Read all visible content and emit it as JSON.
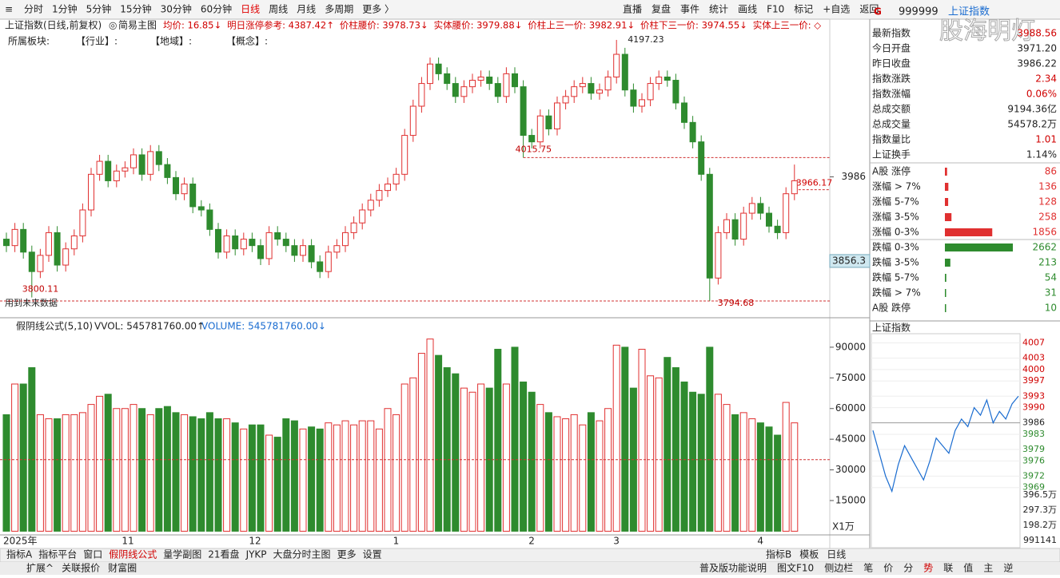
{
  "toolbar": {
    "left": [
      "分时",
      "1分钟",
      "5分钟",
      "15分钟",
      "30分钟",
      "60分钟",
      "日线",
      "周线",
      "月线",
      "多周期",
      "更多 〉"
    ],
    "active": "日线",
    "right": [
      "直播",
      "复盘",
      "事件",
      "统计",
      "画线",
      "F10",
      "标记",
      "+自选",
      "返回"
    ]
  },
  "main_chart": {
    "type": "candlestick",
    "title": "上证指数(日线,前复权)",
    "mode": "简易主图",
    "indicators": [
      "均价: 16.85↓",
      "明日涨停参考: 4387.42↑",
      "价柱腰价: 3978.73↓",
      "实体腰价: 3979.88↓",
      "价柱上三一价: 3982.91↓",
      "价柱下三一价: 3974.55↓",
      "实体上三一价: ◇"
    ],
    "sectors": [
      "所属板块:",
      "【行业】:",
      "【地域】:",
      "【概念】:"
    ],
    "note": "用到未来数据",
    "categories": [
      "2025年",
      null,
      null,
      null,
      null,
      null,
      null,
      null,
      null,
      null,
      null,
      null,
      null,
      null,
      "11",
      null,
      null,
      null,
      null,
      null,
      null,
      null,
      null,
      null,
      null,
      null,
      null,
      null,
      null,
      "12",
      null,
      null,
      null,
      null,
      null,
      null,
      null,
      null,
      null,
      null,
      null,
      null,
      null,
      null,
      null,
      null,
      "1",
      null,
      null,
      null,
      null,
      null,
      null,
      null,
      null,
      null,
      null,
      null,
      null,
      null,
      null,
      null,
      "2",
      null,
      null,
      null,
      null,
      null,
      null,
      null,
      null,
      null,
      "3",
      null,
      null,
      null,
      null,
      null,
      null,
      null,
      null,
      null,
      null,
      null,
      null,
      null,
      null,
      null,
      null,
      "4",
      null,
      null,
      null,
      null
    ],
    "open": [
      3890,
      3880,
      3905,
      3870,
      3840,
      3865,
      3900,
      3850,
      3875,
      3895,
      3935,
      3990,
      4010,
      3980,
      3995,
      4000,
      4020,
      3990,
      4025,
      4005,
      3985,
      3960,
      3975,
      3940,
      3935,
      3905,
      3870,
      3895,
      3875,
      3890,
      3880,
      3860,
      3900,
      3890,
      3880,
      3865,
      3880,
      3855,
      3840,
      3870,
      3880,
      3900,
      3915,
      3935,
      3950,
      3965,
      3975,
      3990,
      4050,
      4095,
      4130,
      4160,
      4145,
      4130,
      4110,
      4125,
      4135,
      4140,
      4130,
      4110,
      4145,
      4125,
      4050,
      4040,
      4080,
      4060,
      4100,
      4110,
      4125,
      4130,
      4115,
      4120,
      4140,
      4175,
      4120,
      4095,
      4105,
      4130,
      4140,
      4135,
      4100,
      4070,
      4040,
      3990,
      3830,
      3900,
      3920,
      3890,
      3930,
      3945,
      3930,
      3910,
      3900,
      3960
    ],
    "close": [
      3880,
      3905,
      3870,
      3840,
      3865,
      3900,
      3850,
      3875,
      3895,
      3935,
      3990,
      4010,
      3980,
      3995,
      4000,
      4020,
      3990,
      4025,
      4005,
      3985,
      3960,
      3975,
      3940,
      3935,
      3905,
      3870,
      3895,
      3875,
      3890,
      3880,
      3860,
      3900,
      3890,
      3880,
      3865,
      3880,
      3855,
      3840,
      3870,
      3880,
      3900,
      3915,
      3935,
      3950,
      3965,
      3975,
      3990,
      4050,
      4095,
      4130,
      4160,
      4145,
      4130,
      4110,
      4125,
      4135,
      4140,
      4130,
      4110,
      4145,
      4125,
      4050,
      4040,
      4080,
      4060,
      4100,
      4110,
      4125,
      4130,
      4115,
      4120,
      4140,
      4175,
      4120,
      4095,
      4105,
      4130,
      4140,
      4135,
      4100,
      4070,
      4040,
      3990,
      3830,
      3900,
      3920,
      3890,
      3930,
      3945,
      3930,
      3910,
      3900,
      3960,
      3980
    ],
    "high": [
      3900,
      3915,
      3915,
      3880,
      3875,
      3910,
      3910,
      3885,
      3905,
      3945,
      4000,
      4020,
      4020,
      4005,
      4010,
      4030,
      4030,
      4035,
      4035,
      4015,
      3995,
      3985,
      3985,
      3950,
      3945,
      3915,
      3905,
      3905,
      3900,
      3900,
      3890,
      3910,
      3910,
      3900,
      3890,
      3890,
      3890,
      3865,
      3880,
      3890,
      3910,
      3925,
      3945,
      3960,
      3975,
      3985,
      4000,
      4060,
      4105,
      4140,
      4170,
      4170,
      4155,
      4140,
      4135,
      4145,
      4150,
      4150,
      4140,
      4155,
      4155,
      4135,
      4060,
      4090,
      4090,
      4110,
      4120,
      4135,
      4140,
      4140,
      4130,
      4150,
      4197.23,
      4185,
      4130,
      4115,
      4140,
      4150,
      4150,
      4145,
      4110,
      4080,
      4050,
      4000,
      3910,
      3930,
      3930,
      3940,
      3955,
      3955,
      3940,
      3920,
      3970,
      4005
    ],
    "low": [
      3870,
      3870,
      3860,
      3800.11,
      3830,
      3855,
      3840,
      3840,
      3865,
      3885,
      3925,
      3980,
      3970,
      3970,
      3985,
      3990,
      3980,
      3980,
      3995,
      3975,
      3950,
      3950,
      3930,
      3925,
      3895,
      3860,
      3860,
      3865,
      3865,
      3870,
      3850,
      3850,
      3880,
      3870,
      3855,
      3855,
      3845,
      3830,
      3830,
      3860,
      3870,
      3890,
      3905,
      3925,
      3940,
      3955,
      3965,
      3980,
      4040,
      4085,
      4120,
      4135,
      4120,
      4100,
      4100,
      4115,
      4125,
      4120,
      4100,
      4100,
      4115,
      4015.75,
      4030,
      4030,
      4050,
      4050,
      4090,
      4100,
      4115,
      4105,
      4105,
      4110,
      4130,
      4110,
      4085,
      4085,
      4095,
      4120,
      4125,
      4090,
      4060,
      4030,
      3980,
      3794.68,
      3820,
      3890,
      3880,
      3880,
      3920,
      3920,
      3900,
      3890,
      3890,
      3950
    ],
    "labels": [
      "chart_data",
      "main_chart"
    ],
    "ylim": [
      3768.8,
      4229.2
    ],
    "yticks": [
      3986
    ],
    "cursor_value": 3856.3,
    "price_line": 3966.17,
    "up_color": "#e03030",
    "down_color": "#2e8b2e"
  },
  "volume_chart": {
    "type": "bar",
    "title": "假阴线公式(5,10)",
    "vvol": "VVOL: 545781760.00↑",
    "vol": "VOLUME: 545781760.00↓",
    "unit": "X1万",
    "values": [
      57000,
      72000,
      72000,
      80000,
      57000,
      55000,
      55000,
      57000,
      57000,
      58000,
      62000,
      66000,
      67000,
      60000,
      60000,
      62000,
      60000,
      57000,
      60000,
      61000,
      58000,
      57000,
      56000,
      55000,
      58000,
      55000,
      55000,
      53000,
      50000,
      52000,
      52000,
      47000,
      46000,
      55000,
      54000,
      50000,
      51000,
      50000,
      53000,
      52000,
      54000,
      52000,
      54000,
      54000,
      50000,
      60000,
      57000,
      72000,
      75000,
      87000,
      94000,
      86000,
      80000,
      77000,
      70000,
      68000,
      72000,
      70000,
      89000,
      72000,
      90000,
      73000,
      68000,
      62000,
      58000,
      56000,
      55000,
      57000,
      52000,
      58000,
      54000,
      60000,
      91000,
      90000,
      70000,
      89000,
      76000,
      75000,
      85000,
      80000,
      73000,
      68000,
      67000,
      90000,
      67000,
      62000,
      57000,
      58000,
      55000,
      53000,
      51000,
      47000,
      63000,
      53000
    ],
    "ylim": [
      0,
      96600
    ],
    "yticks": [
      15000,
      30000,
      45000,
      60000,
      75000,
      90000
    ],
    "ref_line": 35000
  },
  "side_panel": {
    "flag": "G",
    "code": "999999",
    "name": "上证指数",
    "watermark": "股海明灯",
    "stats": [
      [
        "最新指数",
        "3988.56"
      ],
      [
        "今日开盘",
        "3971.20"
      ],
      [
        "昨日收盘",
        "3986.22"
      ],
      [
        "指数涨跌",
        "2.34"
      ],
      [
        "指数涨幅",
        "0.06%"
      ],
      [
        "总成交额",
        "9194.36亿"
      ],
      [
        "总成交量",
        "54578.2万"
      ],
      [
        "指数量比",
        "1.01"
      ],
      [
        "上证换手",
        "1.14%"
      ]
    ],
    "breadth": [
      {
        "label": "A股 涨停",
        "value": 86,
        "dir": "up"
      },
      {
        "label": "涨幅 > 7%",
        "value": 136,
        "dir": "up"
      },
      {
        "label": "涨幅 5-7%",
        "value": 128,
        "dir": "up"
      },
      {
        "label": "涨幅 3-5%",
        "value": 258,
        "dir": "up"
      },
      {
        "label": "涨幅 0-3%",
        "value": 1856,
        "dir": "up"
      },
      {
        "label": "跌幅 0-3%",
        "value": 2662,
        "dir": "down"
      },
      {
        "label": "跌幅 3-5%",
        "value": 213,
        "dir": "down"
      },
      {
        "label": "跌幅 5-7%",
        "value": 54,
        "dir": "down"
      },
      {
        "label": "跌幅 > 7%",
        "value": 31,
        "dir": "down"
      },
      {
        "label": "A股 跌停",
        "value": 10,
        "dir": "down"
      }
    ],
    "mini": {
      "type": "line",
      "title": "上证指数",
      "yticks": [
        4007,
        4003,
        4000,
        3997,
        3993,
        3990,
        3986,
        3983,
        3979,
        3976,
        3972,
        3969
      ],
      "ylim": [
        3966,
        4009
      ],
      "base": 3986,
      "values": [
        3984,
        3978,
        3972,
        3968,
        3975,
        3980,
        3977,
        3974,
        3971,
        3976,
        3982,
        3980,
        3978,
        3984,
        3987,
        3985,
        3990,
        3988,
        3992,
        3986,
        3989,
        3987,
        3991,
        3993
      ],
      "vol_ticks": [
        "396.5万",
        "297.3万",
        "198.2万",
        "991141"
      ]
    }
  },
  "bottom_tabs": {
    "left": [
      "指标A",
      "指标平台",
      "窗口",
      "假阴线公式",
      "量学副图",
      "21看盘",
      "JYKP",
      "大盘分时主图",
      "更多",
      "设置"
    ],
    "active": "假阴线公式",
    "right": [
      "指标B",
      "模板",
      "日线"
    ]
  },
  "status_bar": {
    "left": [
      "扩展^",
      "关联报价",
      "财富圈"
    ],
    "right": [
      "普及版功能说明",
      "图文F10",
      "侧边栏",
      "笔",
      "价",
      "分",
      "势",
      "联",
      "值",
      "主",
      "逆"
    ]
  }
}
